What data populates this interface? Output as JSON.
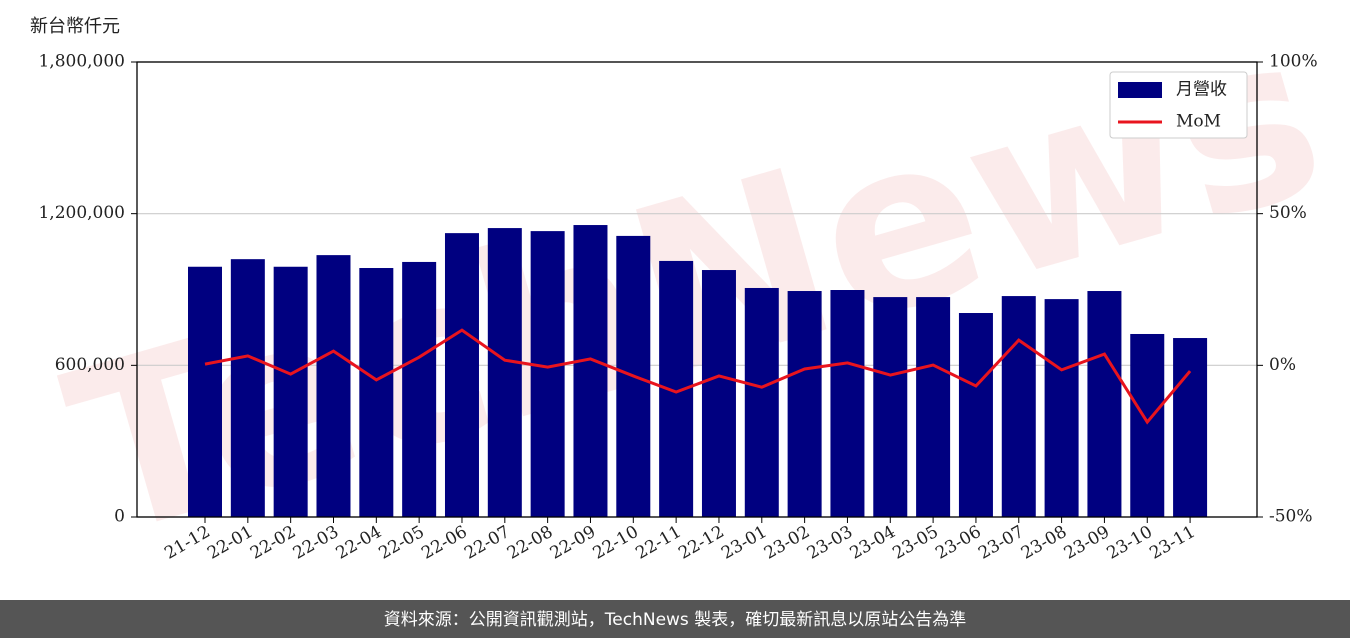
{
  "chart_data": {
    "type": "bar_line",
    "y_label": "新台幣仟元",
    "watermark": "TechNews",
    "footer": "資料來源：公開資訊觀測站，TechNews 製表，確切最新訊息以原站公告為準",
    "categories": [
      "21-12",
      "22-01",
      "22-02",
      "22-03",
      "22-04",
      "22-05",
      "22-06",
      "22-07",
      "22-08",
      "22-09",
      "22-10",
      "22-11",
      "22-12",
      "23-01",
      "23-02",
      "23-03",
      "23-04",
      "23-05",
      "23-06",
      "23-07",
      "23-08",
      "23-09",
      "23-10",
      "23-11"
    ],
    "series": [
      {
        "name": "月營收",
        "type": "bar",
        "color": "#000080",
        "values": [
          990000,
          1020000,
          990000,
          1036000,
          985000,
          1009000,
          1123000,
          1143000,
          1131000,
          1155000,
          1112000,
          1013000,
          977000,
          906000,
          894000,
          898000,
          870000,
          870000,
          807000,
          874000,
          862000,
          894000,
          724000,
          708000
        ]
      },
      {
        "name": "MoM",
        "type": "line",
        "axis": "y2",
        "color": "#e8141e",
        "values": [
          0.4,
          3.1,
          -2.9,
          4.7,
          -4.8,
          2.7,
          11.6,
          1.7,
          -0.6,
          2.1,
          -3.5,
          -8.8,
          -3.5,
          -7.2,
          -1.2,
          0.8,
          -3.2,
          0.1,
          -6.8,
          8.3,
          -1.5,
          3.7,
          -18.7,
          -1.9
        ]
      }
    ],
    "ylim": [
      0,
      1800000
    ],
    "yticks": [
      {
        "value": 0,
        "label": "0"
      },
      {
        "value": 600000,
        "label": "600,000"
      },
      {
        "value": 1200000,
        "label": "1,200,000"
      },
      {
        "value": 1800000,
        "label": "1,800,000"
      }
    ],
    "y2lim": [
      -50,
      100
    ],
    "y2ticks": [
      {
        "value": -50,
        "label": "-50%"
      },
      {
        "value": 0,
        "label": "0%"
      },
      {
        "value": 50,
        "label": "50%"
      },
      {
        "value": 100,
        "label": "100%"
      }
    ],
    "grid": true,
    "legend": "upper right"
  }
}
